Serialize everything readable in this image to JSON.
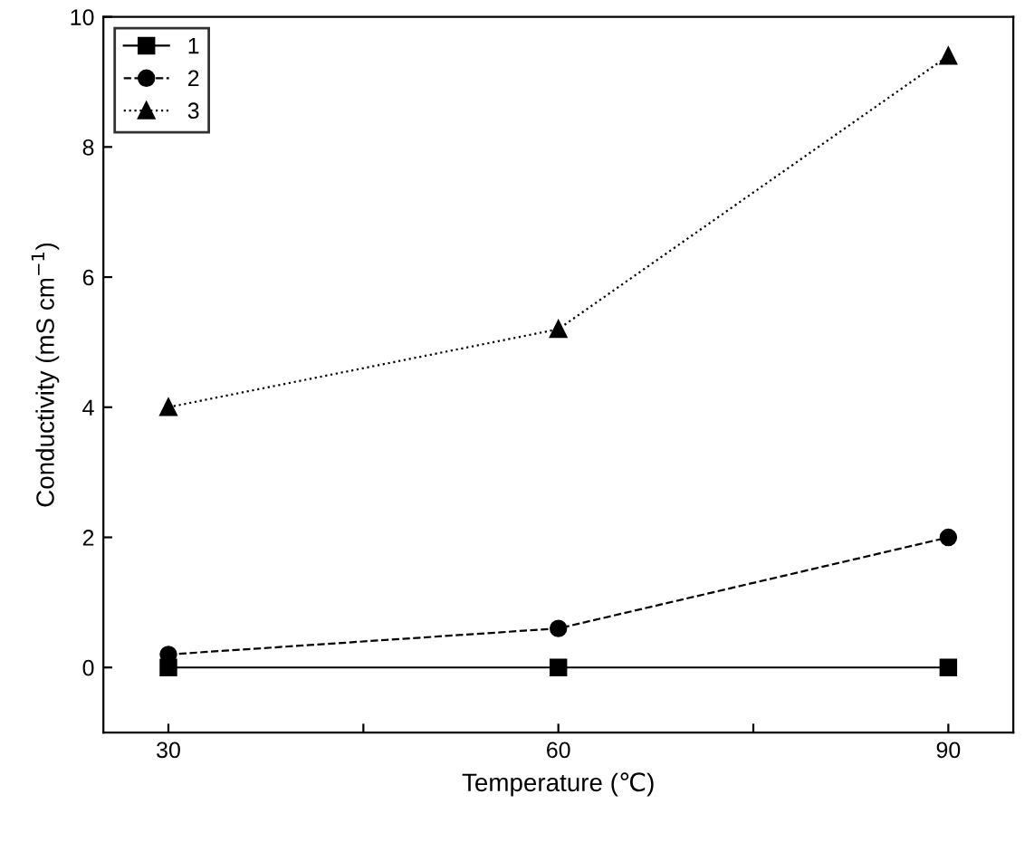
{
  "chart_data": {
    "type": "line",
    "xlabel": "Temperature (℃)",
    "ylabel": "Conductivity (mS cm$^{−1}$)",
    "x": [
      30,
      60,
      90
    ],
    "series": [
      {
        "name": "1",
        "color": "#000000",
        "values": [
          0,
          0,
          0
        ],
        "marker": "square",
        "line_style": "solid"
      },
      {
        "name": "2",
        "color": "#000000",
        "values": [
          0.2,
          0.6,
          2.0
        ],
        "marker": "circle",
        "line_style": "dashed"
      },
      {
        "name": "3",
        "color": "#000000",
        "values": [
          4.0,
          5.2,
          9.4
        ],
        "marker": "triangle",
        "line_style": "dotted"
      }
    ],
    "xlim": [
      25,
      95
    ],
    "xticks": [
      30,
      {
        "value": 45,
        "label": null
      },
      60,
      {
        "value": 75,
        "label": null
      },
      90
    ],
    "ylim": [
      -1,
      10
    ],
    "yticks": [
      0,
      2,
      4,
      6,
      8,
      10
    ],
    "grid": false,
    "legend": "top left"
  }
}
